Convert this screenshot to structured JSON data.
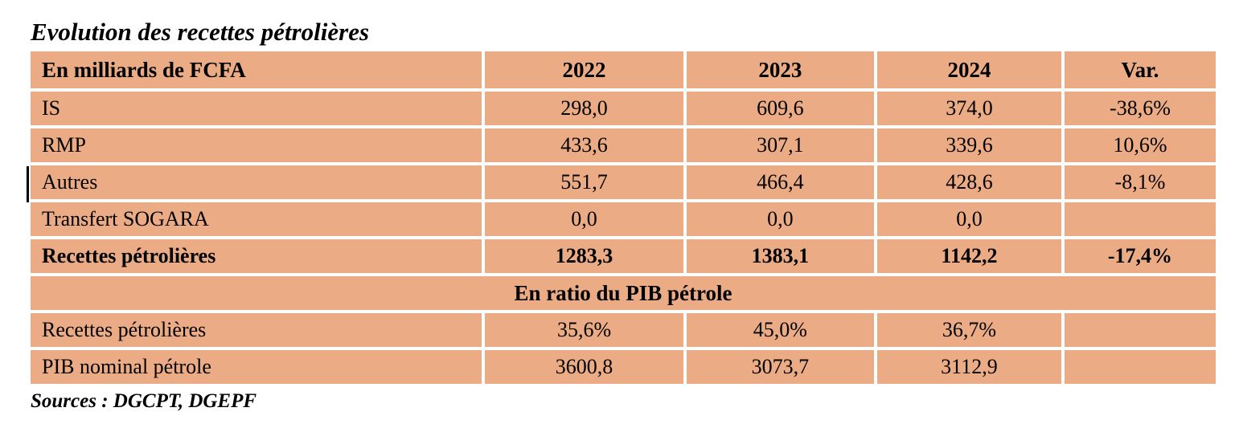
{
  "title": "Evolution des recettes pétrolières",
  "sources": "Sources : DGCPT, DGEPF",
  "colors": {
    "cell_bg": "#ebac85",
    "grid": "#ffffff",
    "text": "#000000",
    "page_bg": "#ffffff"
  },
  "table": {
    "header": [
      "En milliards de FCFA",
      "2022",
      "2023",
      "2024",
      "Var."
    ],
    "rows": [
      {
        "label": "IS",
        "values": [
          "298,0",
          "609,6",
          "374,0",
          "-38,6%"
        ]
      },
      {
        "label": "RMP",
        "values": [
          "433,6",
          "307,1",
          "339,6",
          "10,6%"
        ]
      },
      {
        "label": "Autres",
        "values": [
          "551,7",
          "466,4",
          "428,6",
          "-8,1%"
        ]
      },
      {
        "label": "Transfert SOGARA",
        "values": [
          "0,0",
          "0,0",
          "0,0",
          ""
        ]
      },
      {
        "label": "Recettes pétrolières",
        "values": [
          "1283,3",
          "1383,1",
          "1142,2",
          "-17,4%"
        ]
      }
    ],
    "section_header": "En ratio du PIB pétrole",
    "ratio_rows": [
      {
        "label": "Recettes pétrolières",
        "values": [
          "35,6%",
          "45,0%",
          "36,7%",
          ""
        ]
      },
      {
        "label": "PIB nominal pétrole",
        "values": [
          "3600,8",
          "3073,7",
          "3112,9",
          ""
        ]
      }
    ]
  }
}
